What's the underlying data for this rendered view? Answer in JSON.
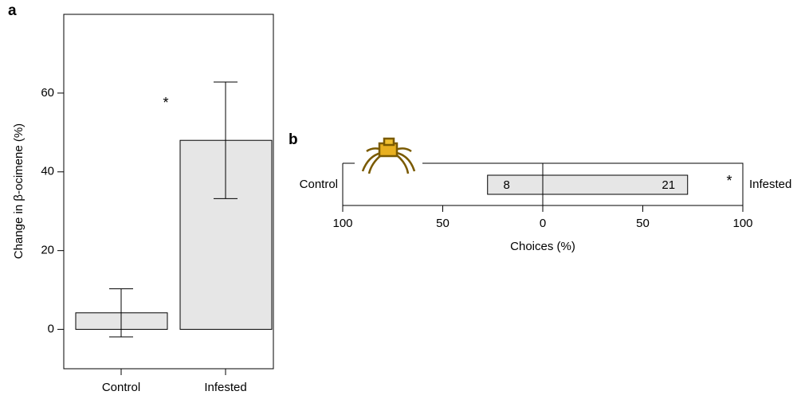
{
  "chart_data": [
    {
      "type": "bar",
      "panel": "a",
      "categories": [
        "Control",
        "Infested"
      ],
      "values": [
        4.2,
        48
      ],
      "errors": [
        6.1,
        14.8
      ],
      "ylabel": "Change in β-ocimene (%)",
      "ylim": [
        -10,
        80
      ],
      "yticks": [
        0,
        20,
        40,
        60
      ],
      "color": "#e6e6e6",
      "annotation": "*"
    },
    {
      "type": "diverging",
      "panel": "b",
      "categories": [
        "Control",
        "Infested"
      ],
      "values": [
        27.6,
        72.4
      ],
      "counts": [
        8,
        21
      ],
      "xlabel": "Choices (%)",
      "xlim": [
        -100,
        100
      ],
      "xticks": [
        {
          "value": -100,
          "label": "100"
        },
        {
          "value": -50,
          "label": "50"
        },
        0,
        50,
        100
      ],
      "color": "#e6e6e6",
      "annotation": "*"
    }
  ]
}
